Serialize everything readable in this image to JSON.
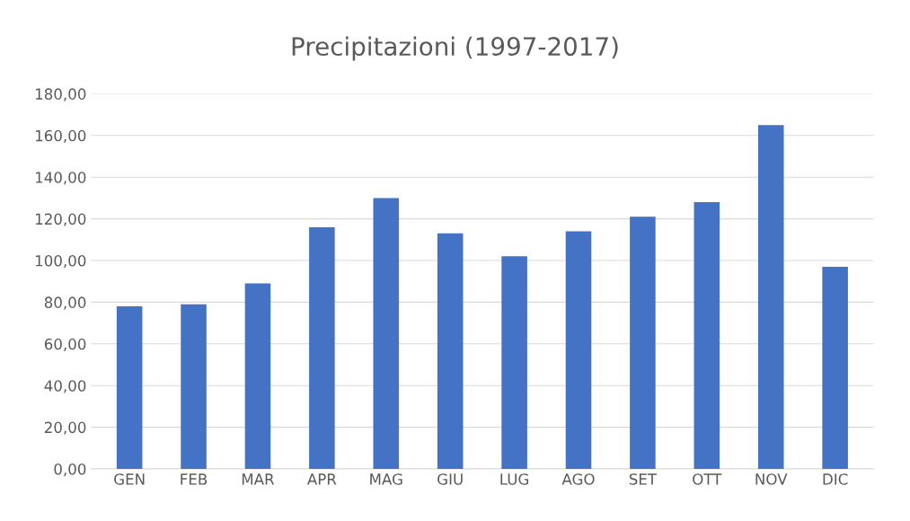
{
  "chart_data": {
    "type": "bar",
    "title": "Precipitazioni (1997-2017)",
    "categories": [
      "GEN",
      "FEB",
      "MAR",
      "APR",
      "MAG",
      "GIU",
      "LUG",
      "AGO",
      "SET",
      "OTT",
      "NOV",
      "DIC"
    ],
    "values": [
      78,
      79,
      89,
      116,
      130,
      113,
      102,
      114,
      121,
      128,
      165,
      97
    ],
    "color": "#4472c4",
    "ylim": [
      0,
      180
    ],
    "yticks": [
      {
        "value": 0,
        "label": "0,00"
      },
      {
        "value": 20,
        "label": "20,00"
      },
      {
        "value": 40,
        "label": "40,00"
      },
      {
        "value": 60,
        "label": "60,00"
      },
      {
        "value": 80,
        "label": "80,00"
      },
      {
        "value": 100,
        "label": "100,00"
      },
      {
        "value": 120,
        "label": "120,00"
      },
      {
        "value": 140,
        "label": "140,00"
      },
      {
        "value": 160,
        "label": "160,00"
      },
      {
        "value": 180,
        "label": "180,00"
      }
    ],
    "grid": "y"
  }
}
